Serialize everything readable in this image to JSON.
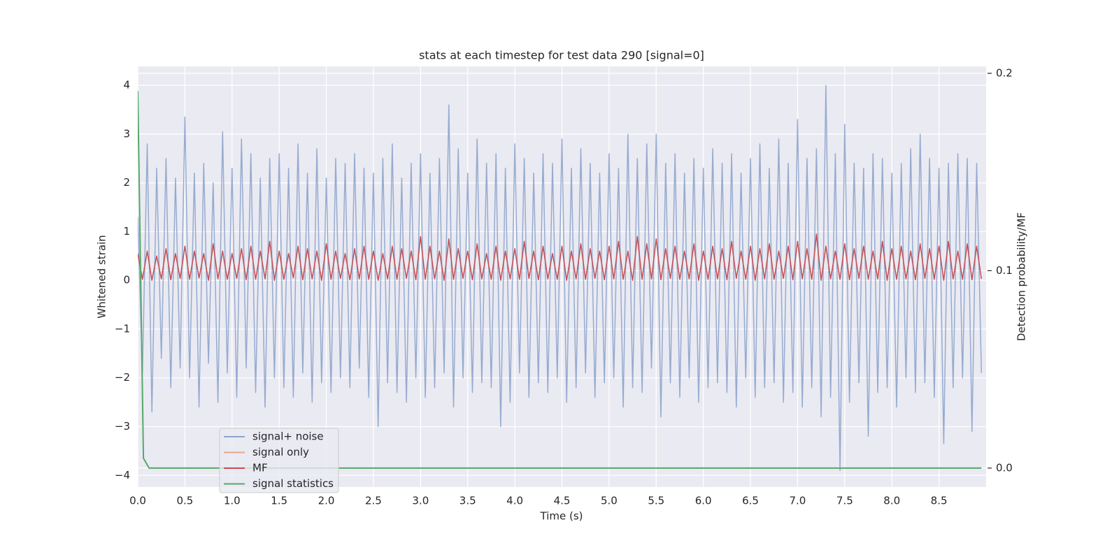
{
  "chart_data": {
    "type": "line",
    "title": "stats at each timestep for test data 290 [signal=0]",
    "xlabel": "Time (s)",
    "ylabel": "Whitened strain",
    "y2label": "Detection probability/MF",
    "x": [
      0,
      0.05,
      0.1,
      0.15,
      0.2,
      0.25,
      0.3,
      0.35,
      0.4,
      0.45,
      0.5,
      0.55,
      0.6,
      0.65,
      0.7,
      0.75,
      0.8,
      0.85,
      0.9,
      0.95,
      1,
      1.05,
      1.1,
      1.15,
      1.2,
      1.25,
      1.3,
      1.35,
      1.4,
      1.45,
      1.5,
      1.55,
      1.6,
      1.65,
      1.7,
      1.75,
      1.8,
      1.85,
      1.9,
      1.95,
      2,
      2.05,
      2.1,
      2.15,
      2.2,
      2.25,
      2.3,
      2.35,
      2.4,
      2.45,
      2.5,
      2.55,
      2.6,
      2.65,
      2.7,
      2.75,
      2.8,
      2.85,
      2.9,
      2.95,
      3,
      3.05,
      3.1,
      3.15,
      3.2,
      3.25,
      3.3,
      3.35,
      3.4,
      3.45,
      3.5,
      3.55,
      3.6,
      3.65,
      3.7,
      3.75,
      3.8,
      3.85,
      3.9,
      3.95,
      4,
      4.05,
      4.1,
      4.15,
      4.2,
      4.25,
      4.3,
      4.35,
      4.4,
      4.45,
      4.5,
      4.55,
      4.6,
      4.65,
      4.7,
      4.75,
      4.8,
      4.85,
      4.9,
      4.95,
      5,
      5.05,
      5.1,
      5.15,
      5.2,
      5.25,
      5.3,
      5.35,
      5.4,
      5.45,
      5.5,
      5.55,
      5.6,
      5.65,
      5.7,
      5.75,
      5.8,
      5.85,
      5.9,
      5.95,
      6,
      6.05,
      6.1,
      6.15,
      6.2,
      6.25,
      6.3,
      6.35,
      6.4,
      6.45,
      6.5,
      6.55,
      6.6,
      6.65,
      6.7,
      6.75,
      6.8,
      6.85,
      6.9,
      6.95,
      7,
      7.05,
      7.1,
      7.15,
      7.2,
      7.25,
      7.3,
      7.35,
      7.4,
      7.45,
      7.5,
      7.55,
      7.6,
      7.65,
      7.7,
      7.75,
      7.8,
      7.85,
      7.9,
      7.95,
      8,
      8.05,
      8.1,
      8.15,
      8.2,
      8.25,
      8.3,
      8.35,
      8.4,
      8.45,
      8.5,
      8.55,
      8.6,
      8.65,
      8.7,
      8.75,
      8.8,
      8.85,
      8.9,
      8.95
    ],
    "series": [
      {
        "name": "signal+ noise",
        "color": "#8da4cc",
        "values": [
          1.3,
          -1.9,
          2.8,
          -2.7,
          2.3,
          -1.6,
          2.5,
          -2.2,
          2.1,
          -1.8,
          3.35,
          -2.0,
          2.2,
          -2.6,
          2.4,
          -1.7,
          2.0,
          -2.5,
          3.05,
          -1.9,
          2.3,
          -2.4,
          2.9,
          -1.8,
          2.6,
          -2.3,
          2.1,
          -2.6,
          2.5,
          -2.0,
          2.6,
          -2.2,
          2.3,
          -2.4,
          2.8,
          -1.9,
          2.2,
          -2.5,
          2.7,
          -2.1,
          2.1,
          -2.3,
          2.5,
          -2.0,
          2.4,
          -2.2,
          2.6,
          -1.8,
          2.3,
          -2.4,
          2.2,
          -3.0,
          2.5,
          -2.1,
          2.8,
          -2.3,
          2.1,
          -2.5,
          2.4,
          -2.0,
          2.6,
          -2.4,
          2.2,
          -2.2,
          2.5,
          -1.9,
          3.6,
          -2.6,
          2.7,
          -2.0,
          2.2,
          -2.3,
          2.9,
          -2.1,
          2.4,
          -2.2,
          2.6,
          -3.0,
          2.3,
          -2.5,
          2.8,
          -1.9,
          2.5,
          -2.4,
          2.2,
          -2.1,
          2.6,
          -2.3,
          2.4,
          -2.0,
          2.9,
          -2.5,
          2.3,
          -2.2,
          2.7,
          -1.9,
          2.4,
          -2.4,
          2.2,
          -2.1,
          2.6,
          -2.0,
          2.3,
          -2.6,
          3.0,
          -2.2,
          2.5,
          -2.3,
          2.8,
          -1.8,
          3.0,
          -2.8,
          2.4,
          -2.1,
          2.6,
          -2.4,
          2.2,
          -2.0,
          2.5,
          -2.5,
          2.3,
          -2.2,
          2.7,
          -2.1,
          2.4,
          -2.3,
          2.6,
          -2.6,
          2.2,
          -2.0,
          2.5,
          -2.4,
          2.8,
          -2.2,
          2.3,
          -2.1,
          2.9,
          -2.5,
          2.4,
          -2.3,
          3.3,
          -2.6,
          2.5,
          -2.2,
          2.7,
          -2.8,
          4.0,
          -2.4,
          2.6,
          -3.9,
          3.2,
          -2.5,
          2.4,
          -2.1,
          2.3,
          -3.2,
          2.6,
          -2.3,
          2.5,
          -2.2,
          2.2,
          -2.6,
          2.4,
          -2.0,
          2.7,
          -2.3,
          3.0,
          -2.1,
          2.5,
          -2.4,
          2.3,
          -3.35,
          2.4,
          -2.2,
          2.6,
          -2.0,
          2.5,
          -3.1,
          2.4,
          -1.9
        ]
      },
      {
        "name": "signal only",
        "color": "#e8a88a"
      },
      {
        "name": "MF",
        "color": "#c44e52",
        "values": [
          0.55,
          0.02,
          0.6,
          0.0,
          0.5,
          0.03,
          0.65,
          0.01,
          0.55,
          0.04,
          0.7,
          0.02,
          0.6,
          0.05,
          0.55,
          0.0,
          0.75,
          0.03,
          0.6,
          0.02,
          0.55,
          0.04,
          0.65,
          0.01,
          0.7,
          0.02,
          0.6,
          0.03,
          0.8,
          0.0,
          0.6,
          0.02,
          0.55,
          0.05,
          0.7,
          0.01,
          0.65,
          0.03,
          0.6,
          0.0,
          0.75,
          0.02,
          0.6,
          0.04,
          0.55,
          0.01,
          0.65,
          0.03,
          0.7,
          0.02,
          0.6,
          0.0,
          0.55,
          0.03,
          0.7,
          0.02,
          0.65,
          0.04,
          0.6,
          0.01,
          0.9,
          0.02,
          0.7,
          0.03,
          0.6,
          0.0,
          0.85,
          0.02,
          0.65,
          0.04,
          0.6,
          0.01,
          0.75,
          0.03,
          0.55,
          0.02,
          0.7,
          0.0,
          0.6,
          0.03,
          0.65,
          0.02,
          0.8,
          0.04,
          0.6,
          0.01,
          0.7,
          0.03,
          0.55,
          0.02,
          0.7,
          0.0,
          0.6,
          0.03,
          0.75,
          0.02,
          0.65,
          0.04,
          0.6,
          0.01,
          0.7,
          0.03,
          0.8,
          0.02,
          0.6,
          0.0,
          0.9,
          0.02,
          0.75,
          0.03,
          0.85,
          0.01,
          0.65,
          0.04,
          0.7,
          0.02,
          0.6,
          0.03,
          0.75,
          0.0,
          0.6,
          0.02,
          0.7,
          0.03,
          0.65,
          0.01,
          0.8,
          0.04,
          0.6,
          0.02,
          0.7,
          0.0,
          0.65,
          0.03,
          0.75,
          0.02,
          0.6,
          0.04,
          0.7,
          0.01,
          0.8,
          0.03,
          0.65,
          0.02,
          0.95,
          0.0,
          0.7,
          0.03,
          0.6,
          0.02,
          0.75,
          0.01,
          0.65,
          0.04,
          0.7,
          0.02,
          0.6,
          0.03,
          0.8,
          0.0,
          0.65,
          0.02,
          0.7,
          0.03,
          0.6,
          0.01,
          0.75,
          0.04,
          0.65,
          0.02,
          0.7,
          0.0,
          0.8,
          0.03,
          0.6,
          0.02,
          0.75,
          0.01,
          0.7,
          0.03
        ]
      },
      {
        "name": "signal statistics",
        "color": "#55a868",
        "axis": "y2",
        "x": [
          0,
          0.06,
          0.12,
          8.95
        ],
        "values": [
          0.191,
          0.005,
          0,
          0
        ]
      }
    ],
    "xlim": [
      0,
      9
    ],
    "ylim": [
      -4.24,
      4.39
    ],
    "y2lim": [
      -0.0096,
      0.2035
    ],
    "xticks": [
      {
        "value": 0,
        "label": "0.0"
      },
      0.5,
      {
        "value": 1,
        "label": "1.0"
      },
      1.5,
      {
        "value": 2,
        "label": "2.0"
      },
      2.5,
      {
        "value": 3,
        "label": "3.0"
      },
      3.5,
      {
        "value": 4,
        "label": "4.0"
      },
      4.5,
      {
        "value": 5,
        "label": "5.0"
      },
      5.5,
      {
        "value": 6,
        "label": "6.0"
      },
      6.5,
      {
        "value": 7,
        "label": "7.0"
      },
      7.5,
      {
        "value": 8,
        "label": "8.0"
      },
      8.5
    ],
    "yticks": [
      {
        "value": -4,
        "label": "−4"
      },
      {
        "value": -3,
        "label": "−3"
      },
      {
        "value": -2,
        "label": "−2"
      },
      {
        "value": -1,
        "label": "−1"
      },
      0,
      1,
      2,
      3,
      4
    ],
    "y2ticks": [
      {
        "value": 0,
        "label": "0.0"
      },
      0.1,
      0.2
    ],
    "grid": true
  }
}
